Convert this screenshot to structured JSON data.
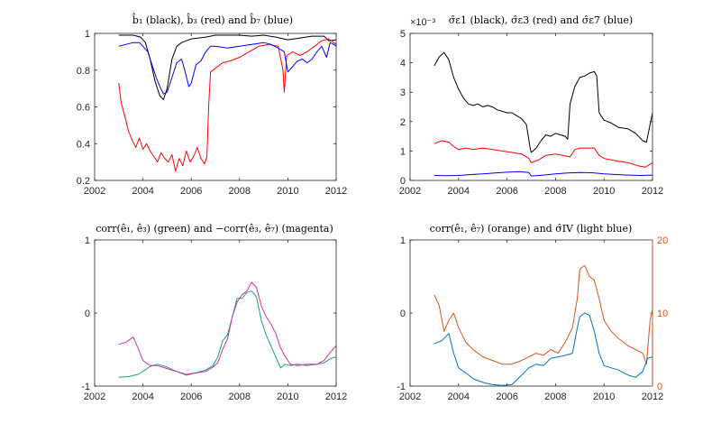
{
  "chart_data": [
    {
      "type": "line",
      "title": "b̂₁ (black), b̂₃ (red) and b̂₇ (blue)",
      "xlim": [
        2002,
        2012
      ],
      "ylim": [
        0.2,
        1
      ],
      "xticks": [
        "2002",
        "2004",
        "2006",
        "2008",
        "2010",
        "2012"
      ],
      "xtick_values": [
        2002,
        2004,
        2006,
        2008,
        2010,
        2012
      ],
      "yticks": [
        "0.2",
        "0.4",
        "0.6",
        "0.8",
        "1"
      ],
      "ytick_values": [
        0.2,
        0.4,
        0.6,
        0.8,
        1
      ],
      "series": [
        {
          "color": "#000000",
          "x": [
            2003.0,
            2003.3,
            2003.6,
            2003.9,
            2004.1,
            2004.3,
            2004.5,
            2004.7,
            2004.85,
            2005.0,
            2005.2,
            2005.4,
            2005.6,
            2005.8,
            2006.0,
            2006.3,
            2006.6,
            2006.8,
            2007.0,
            2007.5,
            2008.0,
            2008.5,
            2009.0,
            2009.5,
            2010.0,
            2010.5,
            2011.0,
            2011.5,
            2011.7,
            2012.0
          ],
          "y": [
            0.99,
            0.99,
            0.99,
            0.98,
            0.95,
            0.86,
            0.74,
            0.66,
            0.64,
            0.7,
            0.86,
            0.93,
            0.95,
            0.96,
            0.97,
            0.975,
            0.98,
            0.985,
            0.99,
            0.99,
            0.99,
            0.985,
            0.99,
            0.98,
            0.965,
            0.975,
            0.985,
            0.985,
            0.96,
            0.965
          ]
        },
        {
          "color": "#ff0000",
          "x": [
            2003.0,
            2003.1,
            2003.25,
            2003.4,
            2003.55,
            2003.7,
            2003.85,
            2004.0,
            2004.15,
            2004.3,
            2004.45,
            2004.6,
            2004.75,
            2004.9,
            2005.05,
            2005.2,
            2005.35,
            2005.5,
            2005.65,
            2005.8,
            2005.95,
            2006.1,
            2006.25,
            2006.4,
            2006.55,
            2006.65,
            2006.72,
            2006.8,
            2007.0,
            2007.3,
            2007.6,
            2008.0,
            2008.4,
            2008.8,
            2009.2,
            2009.6,
            2009.8,
            2009.85,
            2009.95,
            2010.2,
            2010.5,
            2010.8,
            2011.1,
            2011.4,
            2011.7,
            2012.0
          ],
          "y": [
            0.73,
            0.62,
            0.55,
            0.47,
            0.42,
            0.38,
            0.43,
            0.37,
            0.4,
            0.36,
            0.33,
            0.3,
            0.35,
            0.32,
            0.3,
            0.34,
            0.25,
            0.32,
            0.28,
            0.36,
            0.3,
            0.33,
            0.38,
            0.32,
            0.29,
            0.33,
            0.6,
            0.79,
            0.81,
            0.84,
            0.85,
            0.87,
            0.9,
            0.93,
            0.94,
            0.93,
            0.8,
            0.68,
            0.88,
            0.9,
            0.88,
            0.9,
            0.93,
            0.96,
            0.97,
            0.94
          ]
        },
        {
          "color": "#0000ff",
          "x": [
            2003.0,
            2003.3,
            2003.6,
            2003.85,
            2004.0,
            2004.2,
            2004.4,
            2004.55,
            2004.7,
            2004.85,
            2005.0,
            2005.2,
            2005.4,
            2005.6,
            2005.75,
            2005.9,
            2006.0,
            2006.2,
            2006.4,
            2006.6,
            2006.8,
            2007.0,
            2007.5,
            2008.0,
            2008.5,
            2009.0,
            2009.3,
            2009.6,
            2009.85,
            2010.0,
            2010.2,
            2010.4,
            2010.6,
            2010.8,
            2011.0,
            2011.2,
            2011.4,
            2011.6,
            2011.75,
            2011.9,
            2012.0
          ],
          "y": [
            0.93,
            0.94,
            0.95,
            0.95,
            0.93,
            0.9,
            0.82,
            0.76,
            0.71,
            0.67,
            0.68,
            0.76,
            0.84,
            0.86,
            0.79,
            0.71,
            0.73,
            0.83,
            0.85,
            0.9,
            0.93,
            0.93,
            0.92,
            0.93,
            0.94,
            0.95,
            0.94,
            0.92,
            0.9,
            0.79,
            0.82,
            0.85,
            0.86,
            0.84,
            0.86,
            0.9,
            0.93,
            0.87,
            0.95,
            0.94,
            0.93
          ]
        }
      ]
    },
    {
      "type": "line",
      "title": "σ̂ε1 (black), σ̂ε3 (red) and σ̂ε7 (blue)",
      "axis_multiplier": "×10⁻³",
      "xlim": [
        2002,
        2012
      ],
      "ylim": [
        0,
        5
      ],
      "xticks": [
        "2002",
        "2004",
        "2006",
        "2008",
        "2010",
        "2012"
      ],
      "xtick_values": [
        2002,
        2004,
        2006,
        2008,
        2010,
        2012
      ],
      "yticks": [
        "0",
        "1",
        "2",
        "3",
        "4",
        "5"
      ],
      "ytick_values": [
        0,
        1,
        2,
        3,
        4,
        5
      ],
      "series": [
        {
          "color": "#000000",
          "x": [
            2003.0,
            2003.2,
            2003.4,
            2003.6,
            2003.8,
            2004.0,
            2004.2,
            2004.4,
            2004.6,
            2004.8,
            2005.0,
            2005.2,
            2005.4,
            2005.6,
            2005.8,
            2006.0,
            2006.2,
            2006.4,
            2006.6,
            2006.8,
            2006.95,
            2007.0,
            2007.2,
            2007.4,
            2007.6,
            2007.8,
            2008.0,
            2008.2,
            2008.4,
            2008.5,
            2008.6,
            2008.8,
            2009.0,
            2009.2,
            2009.4,
            2009.6,
            2009.7,
            2009.8,
            2010.0,
            2010.3,
            2010.6,
            2011.0,
            2011.3,
            2011.6,
            2011.75,
            2011.9,
            2012.0
          ],
          "y": [
            3.9,
            4.2,
            4.35,
            4.1,
            3.5,
            3.1,
            2.8,
            2.6,
            2.55,
            2.6,
            2.5,
            2.55,
            2.5,
            2.4,
            2.35,
            2.3,
            2.3,
            2.2,
            2.1,
            1.9,
            1.1,
            0.95,
            1.1,
            1.35,
            1.55,
            1.5,
            1.6,
            1.55,
            1.5,
            1.4,
            2.6,
            3.2,
            3.5,
            3.55,
            3.65,
            3.7,
            3.55,
            2.3,
            2.05,
            1.95,
            1.8,
            1.75,
            1.6,
            1.35,
            1.3,
            1.9,
            2.3
          ]
        },
        {
          "color": "#ff0000",
          "x": [
            2003.0,
            2003.3,
            2003.6,
            2003.8,
            2004.0,
            2004.3,
            2004.6,
            2005.0,
            2005.4,
            2005.8,
            2006.2,
            2006.6,
            2006.9,
            2007.0,
            2007.3,
            2007.6,
            2008.0,
            2008.3,
            2008.6,
            2008.8,
            2009.0,
            2009.3,
            2009.6,
            2009.8,
            2010.0,
            2010.3,
            2010.6,
            2011.0,
            2011.4,
            2011.7,
            2012.0
          ],
          "y": [
            1.25,
            1.35,
            1.3,
            1.15,
            1.05,
            1.1,
            1.05,
            1.1,
            1.05,
            1.0,
            0.95,
            0.9,
            0.75,
            0.6,
            0.7,
            0.85,
            0.9,
            0.85,
            0.8,
            1.05,
            1.1,
            1.1,
            1.1,
            0.85,
            0.75,
            0.7,
            0.65,
            0.6,
            0.5,
            0.45,
            0.6
          ]
        },
        {
          "color": "#0000ff",
          "x": [
            2003.0,
            2003.5,
            2004.0,
            2004.5,
            2005.0,
            2005.5,
            2006.0,
            2006.5,
            2006.9,
            2007.0,
            2007.5,
            2008.0,
            2008.5,
            2009.0,
            2009.5,
            2010.0,
            2010.5,
            2011.0,
            2011.5,
            2012.0
          ],
          "y": [
            0.17,
            0.16,
            0.17,
            0.2,
            0.22,
            0.25,
            0.28,
            0.3,
            0.27,
            0.15,
            0.18,
            0.22,
            0.25,
            0.27,
            0.26,
            0.22,
            0.2,
            0.18,
            0.17,
            0.18
          ]
        }
      ]
    },
    {
      "type": "line",
      "title": "corr(ê₁, ê₃) (green) and −corr(ê₃, ê₇) (magenta)",
      "xlim": [
        2002,
        2012
      ],
      "ylim": [
        -1,
        1
      ],
      "xticks": [
        "2002",
        "2004",
        "2006",
        "2008",
        "2010",
        "2012"
      ],
      "xtick_values": [
        2002,
        2004,
        2006,
        2008,
        2010,
        2012
      ],
      "yticks": [
        "-1",
        "0",
        "1"
      ],
      "ytick_values": [
        -1,
        0,
        1
      ],
      "series": [
        {
          "color": "#1f9f74",
          "x": [
            2003.0,
            2003.4,
            2003.8,
            2004.0,
            2004.3,
            2004.6,
            2005.0,
            2005.4,
            2005.8,
            2006.2,
            2006.6,
            2006.9,
            2007.1,
            2007.3,
            2007.5,
            2007.7,
            2007.9,
            2008.1,
            2008.3,
            2008.5,
            2008.7,
            2008.9,
            2009.1,
            2009.3,
            2009.5,
            2009.7,
            2009.9,
            2010.1,
            2010.4,
            2010.8,
            2011.2,
            2011.5,
            2011.8,
            2012.0
          ],
          "y": [
            -0.88,
            -0.87,
            -0.84,
            -0.8,
            -0.73,
            -0.7,
            -0.74,
            -0.8,
            -0.85,
            -0.82,
            -0.78,
            -0.72,
            -0.6,
            -0.38,
            -0.3,
            -0.05,
            0.2,
            0.2,
            0.28,
            0.3,
            0.22,
            -0.1,
            -0.3,
            -0.45,
            -0.6,
            -0.75,
            -0.7,
            -0.72,
            -0.7,
            -0.72,
            -0.7,
            -0.68,
            -0.62,
            -0.6
          ]
        },
        {
          "color": "#d02faa",
          "x": [
            2003.0,
            2003.3,
            2003.6,
            2003.8,
            2004.0,
            2004.3,
            2004.6,
            2005.0,
            2005.4,
            2005.8,
            2006.2,
            2006.6,
            2006.9,
            2007.1,
            2007.3,
            2007.5,
            2007.7,
            2007.9,
            2008.1,
            2008.3,
            2008.5,
            2008.7,
            2008.9,
            2009.1,
            2009.3,
            2009.5,
            2009.7,
            2009.9,
            2010.1,
            2010.4,
            2010.8,
            2011.2,
            2011.5,
            2011.8,
            2012.0
          ],
          "y": [
            -0.43,
            -0.4,
            -0.33,
            -0.48,
            -0.65,
            -0.72,
            -0.72,
            -0.76,
            -0.8,
            -0.84,
            -0.82,
            -0.8,
            -0.74,
            -0.68,
            -0.5,
            -0.35,
            -0.05,
            0.15,
            0.25,
            0.3,
            0.42,
            0.35,
            0.1,
            -0.05,
            -0.15,
            -0.28,
            -0.48,
            -0.6,
            -0.7,
            -0.72,
            -0.7,
            -0.7,
            -0.65,
            -0.52,
            -0.45
          ]
        }
      ]
    },
    {
      "type": "line",
      "title": "corr(ê₁, ê₇) (orange) and σ̂IV (light blue)",
      "xlim": [
        2002,
        2012
      ],
      "ylim": [
        -1,
        1
      ],
      "ylim_right": [
        0,
        20
      ],
      "xticks": [
        "2002",
        "2004",
        "2006",
        "2008",
        "2010",
        "2012"
      ],
      "xtick_values": [
        2002,
        2004,
        2006,
        2008,
        2010,
        2012
      ],
      "yticks": [
        "-1",
        "0",
        "1"
      ],
      "ytick_values": [
        -1,
        0,
        1
      ],
      "yticks_right": [
        "0",
        "10",
        "20"
      ],
      "ytick_values_right": [
        0,
        10,
        20
      ],
      "series": [
        {
          "color": "#d95319",
          "axis": "right",
          "x": [
            2003.0,
            2003.2,
            2003.4,
            2003.6,
            2003.8,
            2004.0,
            2004.3,
            2004.6,
            2005.0,
            2005.4,
            2005.8,
            2006.2,
            2006.6,
            2006.9,
            2007.2,
            2007.5,
            2007.8,
            2008.1,
            2008.4,
            2008.7,
            2008.9,
            2009.0,
            2009.2,
            2009.4,
            2009.6,
            2009.8,
            2010.0,
            2010.3,
            2010.6,
            2011.0,
            2011.3,
            2011.6,
            2011.75,
            2011.9,
            2012.0
          ],
          "y": [
            12.5,
            11.0,
            7.5,
            9.0,
            10.0,
            8.0,
            6.0,
            5.0,
            4.0,
            3.5,
            3.0,
            3.0,
            3.5,
            4.0,
            4.5,
            4.2,
            5.0,
            4.5,
            6.0,
            8.0,
            12.0,
            16.0,
            16.5,
            15.0,
            14.5,
            12.0,
            9.0,
            7.5,
            6.5,
            5.5,
            5.0,
            4.5,
            3.0,
            9.0,
            10.5
          ]
        },
        {
          "color": "#0072bd",
          "axis": "left",
          "x": [
            2003.0,
            2003.3,
            2003.6,
            2003.8,
            2004.0,
            2004.3,
            2004.6,
            2005.0,
            2005.4,
            2005.8,
            2006.2,
            2006.6,
            2006.9,
            2007.2,
            2007.5,
            2007.8,
            2008.1,
            2008.4,
            2008.7,
            2008.9,
            2009.0,
            2009.2,
            2009.4,
            2009.6,
            2009.8,
            2010.0,
            2010.3,
            2010.6,
            2011.0,
            2011.3,
            2011.6,
            2011.8,
            2012.0
          ],
          "y": [
            -0.42,
            -0.38,
            -0.28,
            -0.55,
            -0.75,
            -0.82,
            -0.9,
            -0.95,
            -0.98,
            -0.99,
            -0.98,
            -0.85,
            -0.75,
            -0.7,
            -0.72,
            -0.62,
            -0.6,
            -0.58,
            -0.55,
            -0.2,
            -0.05,
            0.0,
            -0.03,
            -0.25,
            -0.55,
            -0.72,
            -0.75,
            -0.78,
            -0.85,
            -0.88,
            -0.8,
            -0.62,
            -0.6
          ]
        }
      ]
    }
  ]
}
